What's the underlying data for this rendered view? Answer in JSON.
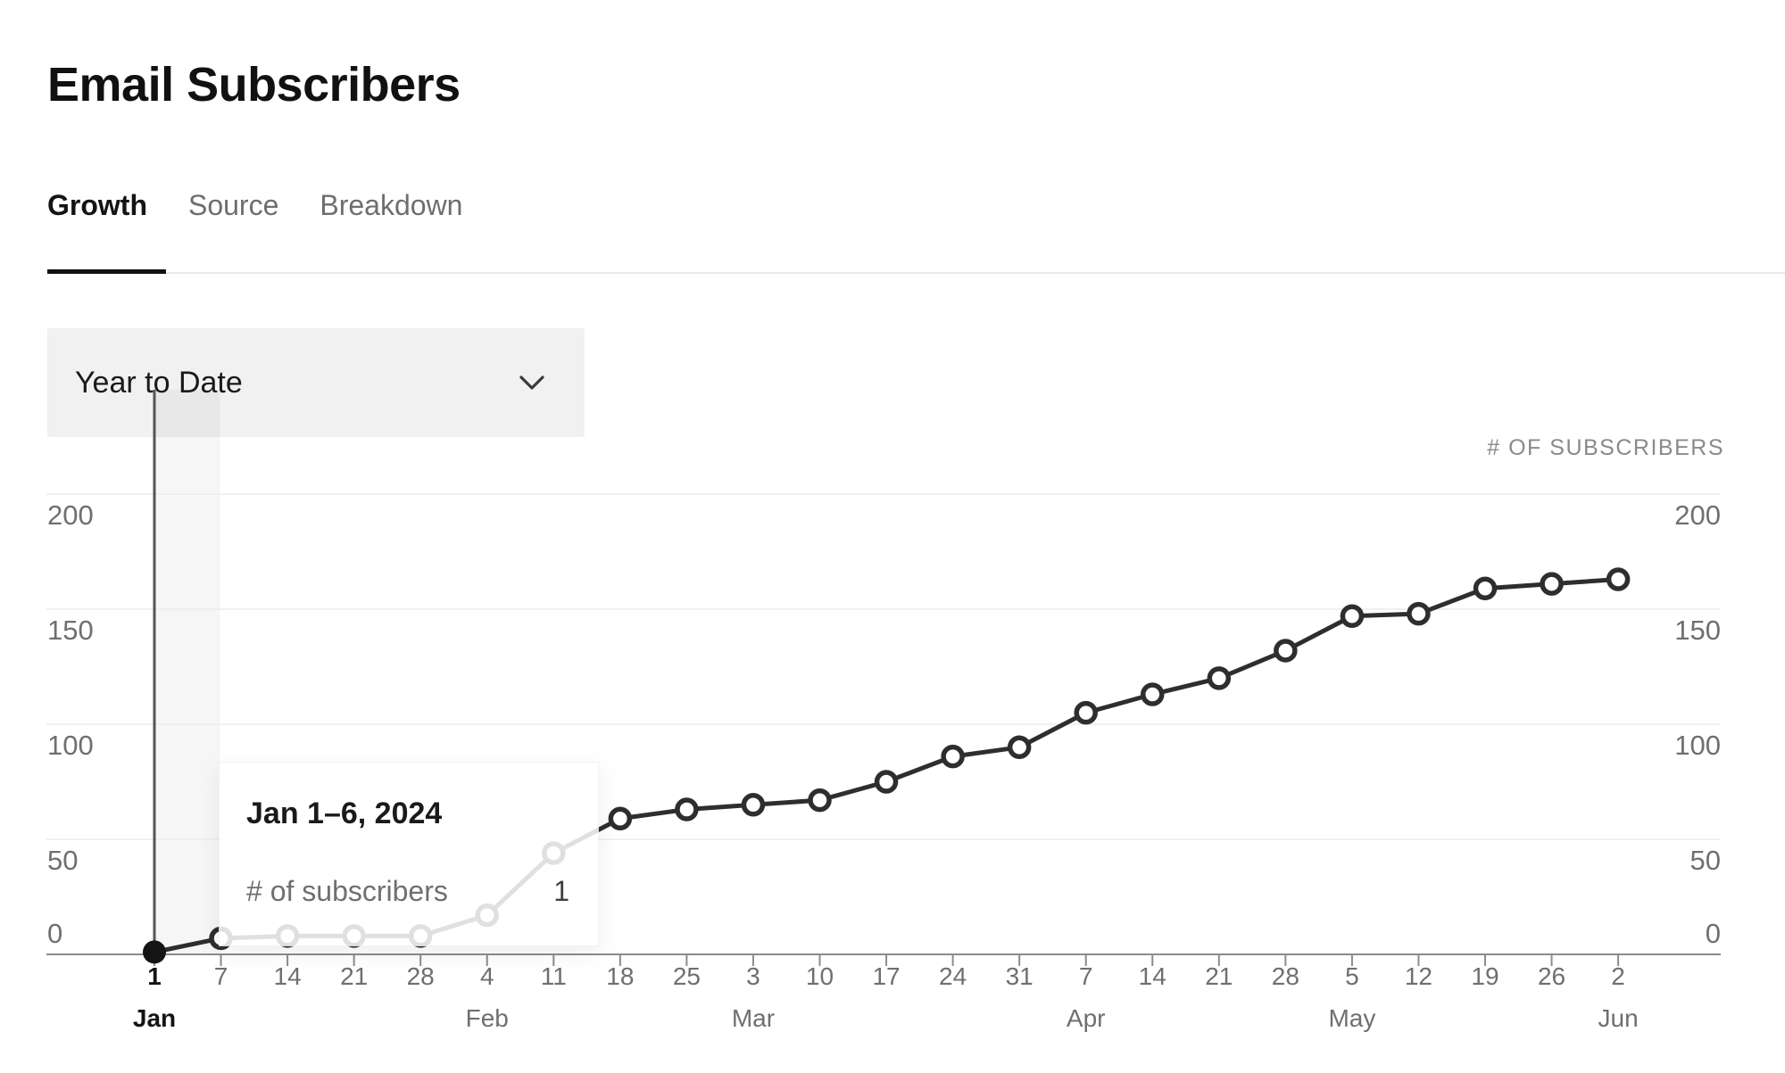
{
  "page": {
    "title": "Email Subscribers"
  },
  "tabs": [
    {
      "label": "Growth",
      "active": true
    },
    {
      "label": "Source",
      "active": false
    },
    {
      "label": "Breakdown",
      "active": false
    }
  ],
  "filter": {
    "value": "Year to Date"
  },
  "axis_caption": "# OF SUBSCRIBERS",
  "tooltip": {
    "title": "Jan 1–6, 2024",
    "label": "# of subscribers",
    "value": "1"
  },
  "chart_data": {
    "type": "line",
    "title": "Email Subscribers — Growth",
    "series_name": "# of subscribers",
    "categories": [
      "Jan 1",
      "Jan 7",
      "Jan 14",
      "Jan 21",
      "Jan 28",
      "Feb 4",
      "Feb 11",
      "Feb 18",
      "Feb 25",
      "Mar 3",
      "Mar 10",
      "Mar 17",
      "Mar 24",
      "Mar 31",
      "Apr 7",
      "Apr 14",
      "Apr 21",
      "Apr 28",
      "May 5",
      "May 12",
      "May 19",
      "May 26",
      "Jun 2"
    ],
    "tick_labels": [
      "1",
      "7",
      "14",
      "21",
      "28",
      "4",
      "11",
      "18",
      "25",
      "3",
      "10",
      "17",
      "24",
      "31",
      "7",
      "14",
      "21",
      "28",
      "5",
      "12",
      "19",
      "26",
      "2"
    ],
    "month_ticks": [
      {
        "index": 0,
        "label": "Jan"
      },
      {
        "index": 5,
        "label": "Feb"
      },
      {
        "index": 9,
        "label": "Mar"
      },
      {
        "index": 14,
        "label": "Apr"
      },
      {
        "index": 18,
        "label": "May"
      },
      {
        "index": 22,
        "label": "Jun"
      }
    ],
    "values": [
      1,
      7,
      8,
      8,
      8,
      17,
      44,
      59,
      63,
      65,
      67,
      75,
      86,
      90,
      105,
      113,
      120,
      132,
      147,
      148,
      159,
      161,
      163
    ],
    "y_ticks": [
      0,
      50,
      100,
      150,
      200
    ],
    "ylim": [
      0,
      215
    ],
    "grid": true,
    "legend": false,
    "highlight_index": 0,
    "colors": {
      "line": "#2e2e2e",
      "marker_fill": "#ffffff",
      "grid": "#ececec",
      "axis": "#8c8c8c",
      "label": "#6f6f6f",
      "active_label": "#141414",
      "highlight_dot": "#141414",
      "hover_line": "#555555",
      "hover_band": "rgba(0,0,0,0.035)"
    }
  }
}
